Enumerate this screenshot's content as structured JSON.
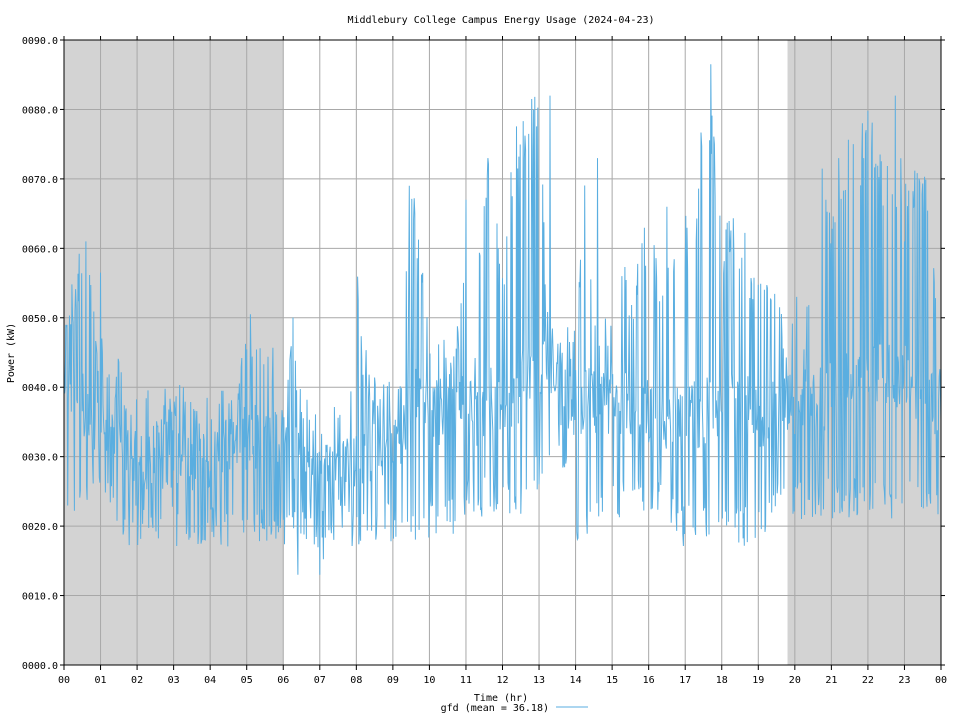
{
  "chart_data": {
    "type": "line",
    "title": "Middlebury College Campus Energy Usage (2024-04-23)",
    "xlabel": "Time (hr)",
    "ylabel": "Power (kW)",
    "xlim": [
      0,
      24
    ],
    "ylim": [
      0,
      90
    ],
    "grid": true,
    "legend_position": "bottom-center",
    "x_ticks": [
      "00",
      "01",
      "02",
      "03",
      "04",
      "05",
      "06",
      "07",
      "08",
      "09",
      "10",
      "11",
      "12",
      "13",
      "14",
      "15",
      "16",
      "17",
      "18",
      "19",
      "20",
      "21",
      "22",
      "23",
      "00"
    ],
    "y_ticks": [
      "0000.0",
      "0010.0",
      "0020.0",
      "0030.0",
      "0040.0",
      "0050.0",
      "0060.0",
      "0070.0",
      "0080.0",
      "0090.0"
    ],
    "shaded_ranges": [
      [
        0,
        6.0
      ],
      [
        19.8,
        24
      ]
    ],
    "colors": {
      "series": "#5aaee0",
      "shade": "#d3d3d3",
      "grid": "#a8a8a8",
      "axis": "#000000"
    },
    "series": [
      {
        "name": "gfd (mean = 36.18)",
        "x": [
          0.0,
          0.25,
          0.5,
          0.75,
          1.0,
          1.25,
          1.5,
          1.75,
          2.0,
          2.25,
          2.5,
          2.75,
          3.0,
          3.25,
          3.5,
          3.75,
          4.0,
          4.25,
          4.5,
          4.75,
          5.0,
          5.25,
          5.5,
          5.75,
          6.0,
          6.25,
          6.5,
          6.75,
          7.0,
          7.25,
          7.5,
          7.75,
          8.0,
          8.25,
          8.5,
          8.75,
          9.0,
          9.25,
          9.5,
          9.75,
          10.0,
          10.25,
          10.5,
          10.75,
          11.0,
          11.25,
          11.5,
          11.75,
          12.0,
          12.25,
          12.5,
          12.75,
          13.0,
          13.25,
          13.5,
          13.75,
          14.0,
          14.25,
          14.5,
          14.75,
          15.0,
          15.25,
          15.5,
          15.75,
          16.0,
          16.25,
          16.5,
          16.75,
          17.0,
          17.25,
          17.5,
          17.75,
          18.0,
          18.25,
          18.5,
          18.75,
          19.0,
          19.25,
          19.5,
          19.75,
          20.0,
          20.25,
          20.5,
          20.75,
          21.0,
          21.25,
          21.5,
          21.75,
          22.0,
          22.25,
          22.5,
          22.75,
          23.0,
          23.25,
          23.5,
          23.75,
          24.0
        ],
        "mean": [
          40,
          40,
          38,
          34,
          33,
          32,
          31,
          30,
          30,
          30,
          30,
          30,
          30,
          30,
          30,
          30,
          30,
          30,
          30,
          32,
          33,
          33,
          33,
          32,
          31,
          31,
          29,
          28,
          27,
          27,
          27,
          28,
          30,
          31,
          31,
          32,
          33,
          34,
          38,
          40,
          36,
          36,
          38,
          38,
          36,
          36,
          38,
          38,
          38,
          38,
          40,
          42,
          44,
          44,
          40,
          38,
          38,
          38,
          38,
          38,
          38,
          38,
          38,
          38,
          36,
          36,
          36,
          36,
          36,
          36,
          36,
          37,
          38,
          38,
          38,
          37,
          36,
          36,
          36,
          38,
          38,
          38,
          38,
          38,
          40,
          40,
          40,
          40,
          42,
          42,
          42,
          42,
          42,
          40,
          40,
          38,
          38
        ],
        "low": [
          22,
          22,
          21,
          22,
          22,
          21,
          18,
          17,
          17,
          17,
          17,
          17,
          17,
          17,
          17,
          17,
          17,
          17,
          17,
          17,
          17,
          17,
          17,
          17,
          17,
          17,
          17,
          17,
          13,
          17,
          17,
          17,
          17,
          17,
          17,
          17,
          18,
          18,
          18,
          18,
          18,
          18,
          18,
          18,
          21,
          21,
          21,
          21,
          21,
          21,
          21,
          21,
          26,
          26,
          26,
          26,
          18,
          18,
          18,
          21,
          21,
          21,
          21,
          21,
          21,
          21,
          21,
          17,
          17,
          17,
          17,
          17,
          17,
          17,
          17,
          17,
          17,
          17,
          21,
          21,
          21,
          21,
          21,
          21,
          21,
          21,
          21,
          21,
          21,
          21,
          21,
          21,
          21,
          21,
          21,
          21,
          21
        ],
        "high": [
          52,
          56,
          61,
          56,
          48,
          48,
          44,
          40,
          40,
          40,
          43,
          40,
          40,
          43,
          40,
          40,
          40,
          40,
          40,
          40,
          51,
          51,
          46,
          46,
          40,
          52,
          40,
          40,
          40,
          38,
          38,
          38,
          60,
          46,
          43,
          43,
          40,
          46,
          69,
          65,
          51,
          49,
          50,
          50,
          63,
          51,
          73,
          73,
          60,
          73,
          82,
          82,
          82,
          50,
          50,
          49,
          50,
          73,
          56,
          50,
          50,
          60,
          56,
          61,
          66,
          59,
          61,
          60,
          65,
          65,
          86,
          80,
          62,
          65,
          65,
          60,
          60,
          60,
          52,
          52,
          52,
          52,
          52,
          73,
          68,
          73,
          78,
          73,
          82,
          75,
          73,
          73,
          73,
          73,
          73,
          64,
          48
        ],
        "spikes": [
          [
            0.6,
            61
          ],
          [
            1.0,
            56.5
          ],
          [
            9.45,
            69
          ],
          [
            9.6,
            65
          ],
          [
            11.0,
            67
          ],
          [
            11.6,
            73
          ],
          [
            12.6,
            73
          ],
          [
            13.0,
            82
          ],
          [
            13.3,
            82
          ],
          [
            14.6,
            73
          ],
          [
            16.5,
            66
          ],
          [
            17.3,
            61
          ],
          [
            17.7,
            86.5
          ],
          [
            17.8,
            75
          ],
          [
            20.05,
            53
          ],
          [
            21.2,
            73
          ],
          [
            21.85,
            78
          ],
          [
            22.75,
            82
          ],
          [
            23.0,
            61
          ],
          [
            13.0,
            26
          ],
          [
            7.0,
            13
          ],
          [
            6.4,
            13
          ]
        ]
      }
    ]
  }
}
